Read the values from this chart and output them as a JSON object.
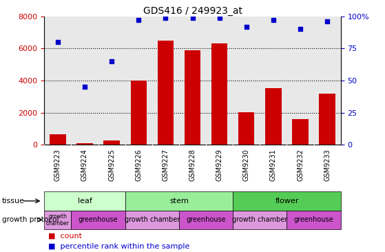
{
  "title": "GDS416 / 249923_at",
  "samples": [
    "GSM9223",
    "GSM9224",
    "GSM9225",
    "GSM9226",
    "GSM9227",
    "GSM9228",
    "GSM9229",
    "GSM9230",
    "GSM9231",
    "GSM9232",
    "GSM9233"
  ],
  "counts": [
    650,
    100,
    280,
    4000,
    6500,
    5900,
    6300,
    2050,
    3550,
    1600,
    3200
  ],
  "percentiles": [
    80,
    45,
    65,
    97,
    99,
    99,
    99,
    92,
    97,
    90,
    96
  ],
  "bar_color": "#cc0000",
  "dot_color": "#0000cc",
  "ylim_left": [
    0,
    8000
  ],
  "ylim_right": [
    0,
    100
  ],
  "yticks_left": [
    0,
    2000,
    4000,
    6000,
    8000
  ],
  "yticks_right": [
    0,
    25,
    50,
    75,
    100
  ],
  "tissue_groups": [
    {
      "label": "leaf",
      "start": 0,
      "end": 3,
      "color": "#ccffcc"
    },
    {
      "label": "stem",
      "start": 3,
      "end": 7,
      "color": "#99ee99"
    },
    {
      "label": "flower",
      "start": 7,
      "end": 11,
      "color": "#55cc55"
    }
  ],
  "protocol_groups": [
    {
      "label": "growth\nchamber",
      "start": 0,
      "end": 1,
      "color": "#dd99dd"
    },
    {
      "label": "greenhouse",
      "start": 1,
      "end": 3,
      "color": "#cc55cc"
    },
    {
      "label": "growth chamber",
      "start": 3,
      "end": 5,
      "color": "#dd99dd"
    },
    {
      "label": "greenhouse",
      "start": 5,
      "end": 7,
      "color": "#cc55cc"
    },
    {
      "label": "growth chamber",
      "start": 7,
      "end": 9,
      "color": "#dd99dd"
    },
    {
      "label": "greenhouse",
      "start": 9,
      "end": 11,
      "color": "#cc55cc"
    }
  ],
  "xticklabel_bg": "#cccccc",
  "tissue_label": "tissue",
  "protocol_label": "growth protocol",
  "legend_count_label": "count",
  "legend_percentile_label": "percentile rank within the sample",
  "plot_bg_color": "#e8e8e8",
  "right_ytick_labels": [
    "0",
    "25",
    "50",
    "75",
    "100%"
  ]
}
